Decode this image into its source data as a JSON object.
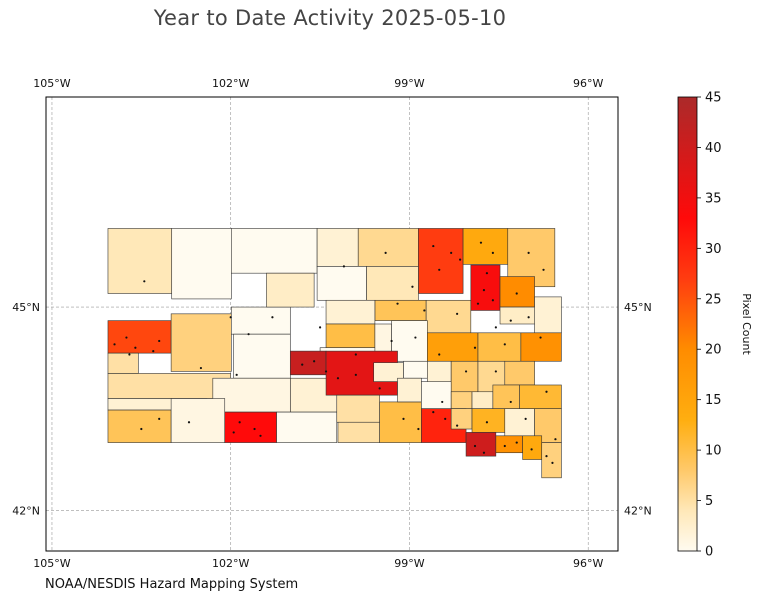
{
  "title": "Year to Date Activity 2025-05-10",
  "credit": "NOAA/NESDIS Hazard Mapping System",
  "colorbar": {
    "label": "Pixel Count",
    "min": 0,
    "max": 45,
    "ticks": [
      "0",
      "5",
      "10",
      "15",
      "20",
      "25",
      "30",
      "35",
      "40",
      "45"
    ],
    "stops": [
      {
        "v": 0,
        "c": "#fffbf0"
      },
      {
        "v": 4,
        "c": "#ffe8b8"
      },
      {
        "v": 8,
        "c": "#ffc96a"
      },
      {
        "v": 13,
        "c": "#ffae10"
      },
      {
        "v": 20,
        "c": "#ff8c00"
      },
      {
        "v": 27,
        "c": "#ff3c10"
      },
      {
        "v": 33,
        "c": "#ff0a0a"
      },
      {
        "v": 45,
        "c": "#ab2a2a"
      }
    ]
  },
  "map": {
    "region": "South Dakota counties",
    "lon_range": [
      -105.1,
      -95.5
    ],
    "lat_range": [
      41.4,
      48.1
    ],
    "lon_ticks": [
      {
        "value": -105,
        "label": "105°W"
      },
      {
        "value": -102,
        "label": "102°W"
      },
      {
        "value": -99,
        "label": "99°W"
      },
      {
        "value": -96,
        "label": "96°W"
      }
    ],
    "lat_ticks": [
      {
        "value": 45,
        "label": "45°N"
      },
      {
        "value": 42,
        "label": "42°N"
      }
    ],
    "counties": [
      {
        "name": "Harding",
        "lon": [
          -104.06,
          -102.99
        ],
        "lat": [
          45.2,
          46.16
        ],
        "count": 4
      },
      {
        "name": "Perkins",
        "lon": [
          -102.99,
          -101.99
        ],
        "lat": [
          45.12,
          46.16
        ],
        "count": 0
      },
      {
        "name": "Corson",
        "lon": [
          -101.99,
          -100.55
        ],
        "lat": [
          45.5,
          46.16
        ],
        "count": 0
      },
      {
        "name": "Campbell",
        "lon": [
          -100.55,
          -99.86
        ],
        "lat": [
          45.6,
          46.16
        ],
        "count": 2
      },
      {
        "name": "McPherson",
        "lon": [
          -99.86,
          -98.85
        ],
        "lat": [
          45.6,
          46.16
        ],
        "count": 6
      },
      {
        "name": "Brown",
        "lon": [
          -98.85,
          -98.1
        ],
        "lat": [
          45.2,
          46.16
        ],
        "count": 27
      },
      {
        "name": "Marshall",
        "lon": [
          -98.1,
          -97.35
        ],
        "lat": [
          45.63,
          46.16
        ],
        "count": 14
      },
      {
        "name": "Roberts",
        "lon": [
          -97.35,
          -96.56
        ],
        "lat": [
          45.3,
          46.16
        ],
        "count": 8
      },
      {
        "name": "Butte",
        "lon": [
          -104.06,
          -103.0
        ],
        "lat": [
          44.32,
          44.8
        ],
        "count": 26
      },
      {
        "name": "Meade",
        "lon": [
          -103.0,
          -101.99
        ],
        "lat": [
          44.05,
          44.9
        ],
        "count": 7
      },
      {
        "name": "Ziebach",
        "lon": [
          -101.99,
          -101.0
        ],
        "lat": [
          44.6,
          45.0
        ],
        "count": 0
      },
      {
        "name": "Dewey",
        "lon": [
          -101.4,
          -100.6
        ],
        "lat": [
          45.0,
          45.5
        ],
        "count": 3
      },
      {
        "name": "Walworth",
        "lon": [
          -100.55,
          -99.72
        ],
        "lat": [
          45.1,
          45.6
        ],
        "count": 0
      },
      {
        "name": "Edmunds",
        "lon": [
          -99.72,
          -98.85
        ],
        "lat": [
          45.1,
          45.6
        ],
        "count": 4
      },
      {
        "name": "Faulk",
        "lon": [
          -99.58,
          -98.72
        ],
        "lat": [
          44.8,
          45.1
        ],
        "count": 9
      },
      {
        "name": "Spink",
        "lon": [
          -98.72,
          -97.97
        ],
        "lat": [
          44.62,
          45.1
        ],
        "count": 6
      },
      {
        "name": "Day",
        "lon": [
          -97.97,
          -97.48
        ],
        "lat": [
          44.95,
          45.62
        ],
        "count": 34
      },
      {
        "name": "Grant",
        "lon": [
          -97.48,
          -96.9
        ],
        "lat": [
          45.0,
          45.45
        ],
        "count": 20
      },
      {
        "name": "Codington",
        "lon": [
          -97.48,
          -96.88
        ],
        "lat": [
          44.75,
          45.0
        ],
        "count": 3
      },
      {
        "name": "Deuel",
        "lon": [
          -96.9,
          -96.45
        ],
        "lat": [
          44.62,
          45.15
        ],
        "count": 2
      },
      {
        "name": "Potter",
        "lon": [
          -100.4,
          -99.58
        ],
        "lat": [
          44.75,
          45.1
        ],
        "count": 2
      },
      {
        "name": "Sully",
        "lon": [
          -100.4,
          -99.58
        ],
        "lat": [
          44.4,
          44.75
        ],
        "count": 10
      },
      {
        "name": "Hughes",
        "lon": [
          -100.5,
          -99.5
        ],
        "lat": [
          44.18,
          44.4
        ],
        "count": 0
      },
      {
        "name": "Hand",
        "lon": [
          -99.58,
          -99.3
        ],
        "lat": [
          44.2,
          44.75
        ],
        "count": 1
      },
      {
        "name": "Hyde",
        "lon": [
          -99.3,
          -98.7
        ],
        "lat": [
          44.2,
          44.8
        ],
        "count": 0
      },
      {
        "name": "Beadle",
        "lon": [
          -98.7,
          -97.85
        ],
        "lat": [
          44.2,
          44.62
        ],
        "count": 16
      },
      {
        "name": "Kingsbury",
        "lon": [
          -97.85,
          -97.13
        ],
        "lat": [
          44.2,
          44.62
        ],
        "count": 10
      },
      {
        "name": "Brookings",
        "lon": [
          -97.13,
          -96.45
        ],
        "lat": [
          44.2,
          44.62
        ],
        "count": 19
      },
      {
        "name": "Lawrence",
        "lon": [
          -104.06,
          -103.55
        ],
        "lat": [
          44.02,
          44.32
        ],
        "count": 5
      },
      {
        "name": "Pennington",
        "lon": [
          -104.06,
          -102.0
        ],
        "lat": [
          43.65,
          44.02
        ],
        "count": 5
      },
      {
        "name": "Haakon",
        "lon": [
          -101.95,
          -101.0
        ],
        "lat": [
          43.95,
          44.6
        ],
        "count": 0
      },
      {
        "name": "Stanley",
        "lon": [
          -101.0,
          -100.4
        ],
        "lat": [
          44.0,
          44.35
        ],
        "count": 41
      },
      {
        "name": "Jones",
        "lon": [
          -101.0,
          -100.2
        ],
        "lat": [
          43.45,
          43.95
        ],
        "count": 2
      },
      {
        "name": "Lyman",
        "lon": [
          -100.4,
          -99.2
        ],
        "lat": [
          43.7,
          44.35
        ],
        "count": 37
      },
      {
        "name": "Buffalo",
        "lon": [
          -99.6,
          -99.1
        ],
        "lat": [
          43.9,
          44.18
        ],
        "count": 2
      },
      {
        "name": "Jerauld",
        "lon": [
          -99.1,
          -98.7
        ],
        "lat": [
          43.95,
          44.2
        ],
        "count": 0
      },
      {
        "name": "Sanborn",
        "lon": [
          -98.7,
          -98.3
        ],
        "lat": [
          43.7,
          44.2
        ],
        "count": 2
      },
      {
        "name": "Miner",
        "lon": [
          -98.3,
          -97.85
        ],
        "lat": [
          43.7,
          44.2
        ],
        "count": 8
      },
      {
        "name": "Lake",
        "lon": [
          -97.85,
          -97.4
        ],
        "lat": [
          43.7,
          44.2
        ],
        "count": 6
      },
      {
        "name": "Moody",
        "lon": [
          -97.4,
          -96.9
        ],
        "lat": [
          43.85,
          44.2
        ],
        "count": 8
      },
      {
        "name": "Custer",
        "lon": [
          -104.06,
          -102.4
        ],
        "lat": [
          43.48,
          43.65
        ],
        "count": 2
      },
      {
        "name": "Jackson",
        "lon": [
          -102.3,
          -101.0
        ],
        "lat": [
          43.45,
          43.95
        ],
        "count": 1
      },
      {
        "name": "Fall River",
        "lon": [
          -104.06,
          -103.0
        ],
        "lat": [
          43.0,
          43.48
        ],
        "count": 9
      },
      {
        "name": "Shannon",
        "lon": [
          -103.0,
          -102.1
        ],
        "lat": [
          43.0,
          43.65
        ],
        "count": 1
      },
      {
        "name": "Bennett",
        "lon": [
          -102.1,
          -101.23
        ],
        "lat": [
          43.0,
          43.45
        ],
        "count": 33
      },
      {
        "name": "Todd",
        "lon": [
          -101.23,
          -100.22
        ],
        "lat": [
          43.0,
          43.45
        ],
        "count": 0
      },
      {
        "name": "Mellette",
        "lon": [
          -100.22,
          -99.5
        ],
        "lat": [
          43.3,
          43.7
        ],
        "count": 5
      },
      {
        "name": "Tripp",
        "lon": [
          -100.2,
          -99.5
        ],
        "lat": [
          43.0,
          43.3
        ],
        "count": 5
      },
      {
        "name": "Gregory",
        "lon": [
          -99.5,
          -98.8
        ],
        "lat": [
          43.0,
          43.6
        ],
        "count": 10
      },
      {
        "name": "Brule",
        "lon": [
          -99.2,
          -98.8
        ],
        "lat": [
          43.6,
          43.95
        ],
        "count": 2
      },
      {
        "name": "Aurora",
        "lon": [
          -98.8,
          -98.3
        ],
        "lat": [
          43.5,
          43.9
        ],
        "count": 0
      },
      {
        "name": "Davison",
        "lon": [
          -98.3,
          -97.95
        ],
        "lat": [
          43.5,
          43.75
        ],
        "count": 7
      },
      {
        "name": "Hanson",
        "lon": [
          -97.95,
          -97.6
        ],
        "lat": [
          43.5,
          43.75
        ],
        "count": 3
      },
      {
        "name": "McCook",
        "lon": [
          -97.6,
          -97.15
        ],
        "lat": [
          43.5,
          43.85
        ],
        "count": 9
      },
      {
        "name": "Minnehaha",
        "lon": [
          -97.15,
          -96.45
        ],
        "lat": [
          43.5,
          43.85
        ],
        "count": 11
      },
      {
        "name": "Charles Mix",
        "lon": [
          -98.8,
          -98.05
        ],
        "lat": [
          43.0,
          43.5
        ],
        "count": 30
      },
      {
        "name": "Douglas",
        "lon": [
          -98.3,
          -97.95
        ],
        "lat": [
          43.2,
          43.5
        ],
        "count": 7
      },
      {
        "name": "Hutchinson",
        "lon": [
          -97.95,
          -97.4
        ],
        "lat": [
          43.15,
          43.5
        ],
        "count": 12
      },
      {
        "name": "Turner",
        "lon": [
          -97.4,
          -96.9
        ],
        "lat": [
          43.1,
          43.5
        ],
        "count": 2
      },
      {
        "name": "Lincoln",
        "lon": [
          -96.9,
          -96.45
        ],
        "lat": [
          43.0,
          43.5
        ],
        "count": 8
      },
      {
        "name": "Bon Homme",
        "lon": [
          -98.05,
          -97.55
        ],
        "lat": [
          42.8,
          43.15
        ],
        "count": 40
      },
      {
        "name": "Yankton",
        "lon": [
          -97.55,
          -97.1
        ],
        "lat": [
          42.85,
          43.1
        ],
        "count": 19
      },
      {
        "name": "Clay",
        "lon": [
          -97.1,
          -96.78
        ],
        "lat": [
          42.75,
          43.1
        ],
        "count": 14
      },
      {
        "name": "Union",
        "lon": [
          -96.78,
          -96.45
        ],
        "lat": [
          42.48,
          43.0
        ],
        "count": 7
      }
    ],
    "fires": [
      [
        -103.45,
        45.38
      ],
      [
        -103.95,
        44.45
      ],
      [
        -103.6,
        44.4
      ],
      [
        -103.75,
        44.55
      ],
      [
        -103.7,
        44.3
      ],
      [
        -103.3,
        44.35
      ],
      [
        -103.2,
        44.5
      ],
      [
        -102.5,
        44.1
      ],
      [
        -101.9,
        44.0
      ],
      [
        -102.0,
        44.85
      ],
      [
        -101.7,
        44.6
      ],
      [
        -101.3,
        44.85
      ],
      [
        -100.5,
        44.7
      ],
      [
        -100.1,
        45.6
      ],
      [
        -99.9,
        44.3
      ],
      [
        -100.8,
        44.15
      ],
      [
        -100.6,
        44.2
      ],
      [
        -100.4,
        44.05
      ],
      [
        -100.2,
        43.95
      ],
      [
        -99.9,
        44.0
      ],
      [
        -99.5,
        43.8
      ],
      [
        -98.6,
        45.9
      ],
      [
        -98.3,
        45.8
      ],
      [
        -98.5,
        45.55
      ],
      [
        -98.15,
        45.7
      ],
      [
        -97.8,
        45.95
      ],
      [
        -97.6,
        45.8
      ],
      [
        -97.7,
        45.5
      ],
      [
        -97.75,
        45.25
      ],
      [
        -97.6,
        45.1
      ],
      [
        -97.85,
        45.05
      ],
      [
        -97.2,
        45.2
      ],
      [
        -97.0,
        44.85
      ],
      [
        -96.8,
        44.55
      ],
      [
        -97.4,
        44.45
      ],
      [
        -98.5,
        44.3
      ],
      [
        -97.9,
        44.4
      ],
      [
        -97.55,
        44.05
      ],
      [
        -97.3,
        43.6
      ],
      [
        -96.7,
        43.75
      ],
      [
        -98.6,
        43.45
      ],
      [
        -98.4,
        43.35
      ],
      [
        -98.2,
        43.25
      ],
      [
        -97.9,
        42.95
      ],
      [
        -97.75,
        42.85
      ],
      [
        -97.4,
        42.95
      ],
      [
        -97.2,
        43.0
      ],
      [
        -96.95,
        42.9
      ],
      [
        -96.7,
        42.8
      ],
      [
        -101.85,
        43.3
      ],
      [
        -101.6,
        43.2
      ],
      [
        -101.5,
        43.1
      ],
      [
        -101.95,
        43.15
      ],
      [
        -103.5,
        43.2
      ],
      [
        -103.2,
        43.35
      ],
      [
        -102.7,
        43.3
      ],
      [
        -99.1,
        43.35
      ],
      [
        -98.85,
        43.2
      ],
      [
        -99.3,
        44.5
      ],
      [
        -98.95,
        45.3
      ],
      [
        -99.4,
        45.8
      ],
      [
        -99.2,
        45.05
      ],
      [
        -98.2,
        44.9
      ],
      [
        -97.55,
        44.7
      ],
      [
        -98.05,
        44.05
      ],
      [
        -98.45,
        43.6
      ],
      [
        -97.05,
        43.35
      ],
      [
        -97.3,
        44.8
      ],
      [
        -96.75,
        45.55
      ],
      [
        -97.0,
        45.8
      ],
      [
        -98.9,
        44.55
      ],
      [
        -98.75,
        44.95
      ],
      [
        -97.7,
        43.3
      ],
      [
        -96.55,
        43.05
      ],
      [
        -96.6,
        42.7
      ]
    ]
  }
}
